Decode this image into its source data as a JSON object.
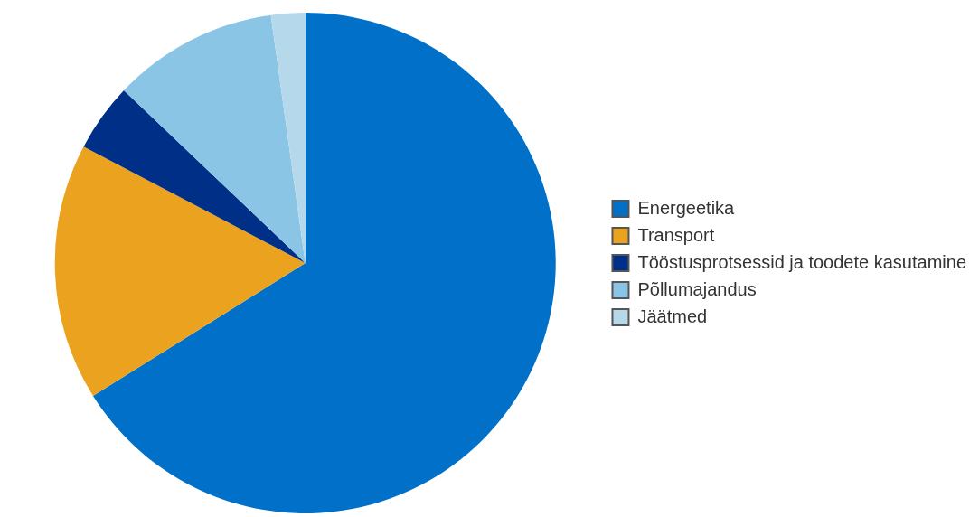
{
  "chart_data": {
    "type": "pie",
    "categories": [
      "Energeetika",
      "Transport",
      "Tööstusprotsessid ja toodete kasutamine",
      "Põllumajandus",
      "Jäätmed"
    ],
    "values": [
      66.1,
      16.6,
      4.4,
      10.7,
      2.2
    ],
    "colors": [
      "#0070c8",
      "#eba31f",
      "#002f87",
      "#8bc5e5",
      "#b5d9ea"
    ],
    "legend": "right"
  }
}
